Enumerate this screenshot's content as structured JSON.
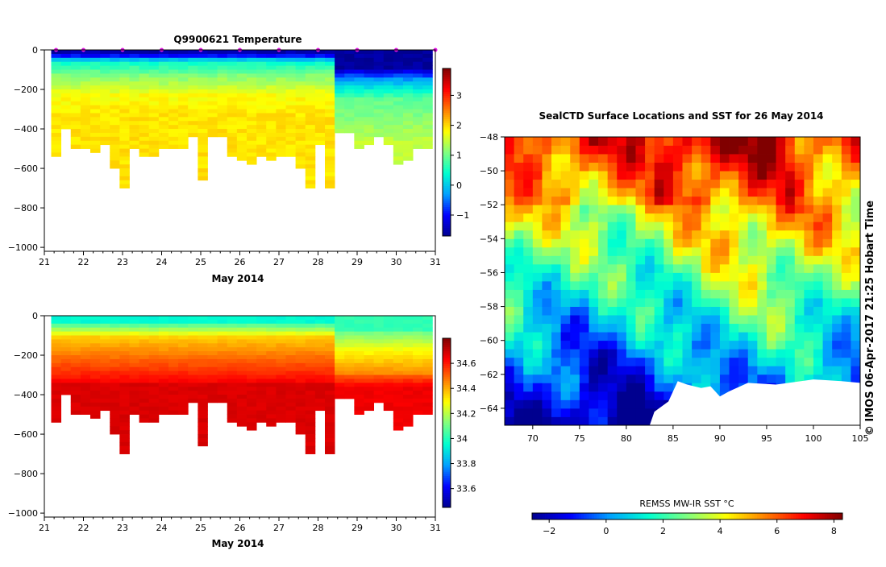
{
  "chart_data": [
    {
      "type": "heatmap",
      "title": "Q9900621  Temperature",
      "xlabel": "May 2014",
      "ylabel": "",
      "xlim": [
        21,
        31
      ],
      "ylim": [
        -1020,
        0
      ],
      "x_ticks": [
        21,
        22,
        23,
        24,
        25,
        26,
        27,
        28,
        29,
        30,
        31
      ],
      "y_ticks": [
        0,
        -200,
        -400,
        -600,
        -800,
        -1000
      ],
      "colorbar": {
        "min": -1.7,
        "max": 3.9,
        "ticks": [
          -1,
          0,
          1,
          2,
          3
        ]
      },
      "profile_markers_x": [
        21.3,
        22.0,
        23.0,
        24.0,
        25.0,
        26.0,
        27.0,
        28.0,
        29.0,
        30.0,
        31.0
      ],
      "profiles": [
        {
          "x": 21.3,
          "bottom": -530
        },
        {
          "x": 21.55,
          "bottom": -400
        },
        {
          "x": 21.8,
          "bottom": -490
        },
        {
          "x": 22.05,
          "bottom": -500
        },
        {
          "x": 22.3,
          "bottom": -510
        },
        {
          "x": 22.55,
          "bottom": -470
        },
        {
          "x": 22.8,
          "bottom": -600
        },
        {
          "x": 23.05,
          "bottom": -700
        },
        {
          "x": 23.3,
          "bottom": -500
        },
        {
          "x": 23.55,
          "bottom": -540
        },
        {
          "x": 23.8,
          "bottom": -540
        },
        {
          "x": 24.05,
          "bottom": -500
        },
        {
          "x": 24.3,
          "bottom": -500
        },
        {
          "x": 24.55,
          "bottom": -500
        },
        {
          "x": 24.8,
          "bottom": -430
        },
        {
          "x": 25.05,
          "bottom": -660
        },
        {
          "x": 25.3,
          "bottom": -430
        },
        {
          "x": 25.55,
          "bottom": -430
        },
        {
          "x": 25.8,
          "bottom": -540
        },
        {
          "x": 26.05,
          "bottom": -560
        },
        {
          "x": 26.3,
          "bottom": -570
        },
        {
          "x": 26.55,
          "bottom": -530
        },
        {
          "x": 26.8,
          "bottom": -560
        },
        {
          "x": 27.05,
          "bottom": -540
        },
        {
          "x": 27.3,
          "bottom": -540
        },
        {
          "x": 27.55,
          "bottom": -590
        },
        {
          "x": 27.8,
          "bottom": -700
        },
        {
          "x": 28.05,
          "bottom": -480
        },
        {
          "x": 28.3,
          "bottom": -700
        },
        {
          "x": 28.55,
          "bottom": -410
        },
        {
          "x": 28.8,
          "bottom": -410
        },
        {
          "x": 29.05,
          "bottom": -500
        },
        {
          "x": 29.3,
          "bottom": -470
        },
        {
          "x": 29.55,
          "bottom": -430
        },
        {
          "x": 29.8,
          "bottom": -470
        },
        {
          "x": 30.05,
          "bottom": -580
        },
        {
          "x": 30.3,
          "bottom": -560
        },
        {
          "x": 30.55,
          "bottom": -500
        },
        {
          "x": 30.8,
          "bottom": -500
        }
      ]
    },
    {
      "type": "heatmap",
      "title": "",
      "xlabel": "May 2014",
      "ylabel": "",
      "xlim": [
        21,
        31
      ],
      "ylim": [
        -1020,
        0
      ],
      "x_ticks": [
        21,
        22,
        23,
        24,
        25,
        26,
        27,
        28,
        29,
        30,
        31
      ],
      "y_ticks": [
        0,
        -200,
        -400,
        -600,
        -800,
        -1000
      ],
      "colorbar": {
        "min": 33.45,
        "max": 34.8,
        "ticks": [
          33.6,
          33.8,
          34,
          34.2,
          34.4,
          34.6
        ]
      }
    },
    {
      "type": "heatmap",
      "title": "SealCTD Surface Locations and SST for 26 May 2014",
      "xlabel": "",
      "ylabel": "",
      "xlim": [
        67,
        105
      ],
      "ylim": [
        -65,
        -48
      ],
      "x_ticks": [
        70,
        75,
        80,
        85,
        90,
        95,
        100,
        105
      ],
      "y_ticks": [
        -48,
        -50,
        -52,
        -54,
        -56,
        -58,
        -60,
        -62,
        -64
      ],
      "colorbar": {
        "label": "REMSS MW-IR SST °C",
        "min": -2.6,
        "max": 8.3,
        "ticks": [
          -2,
          0,
          2,
          4,
          6,
          8
        ]
      },
      "side_label": "© IMOS 06-Apr-2017 21:25 Hobart Time"
    }
  ],
  "colors": {
    "jet": [
      "#00008f",
      "#0000ff",
      "#00a0ff",
      "#00ffd0",
      "#80ff80",
      "#ffff00",
      "#ff8000",
      "#ff0000",
      "#800000"
    ],
    "marker": "#e010e0",
    "ice": "#ffffff"
  }
}
